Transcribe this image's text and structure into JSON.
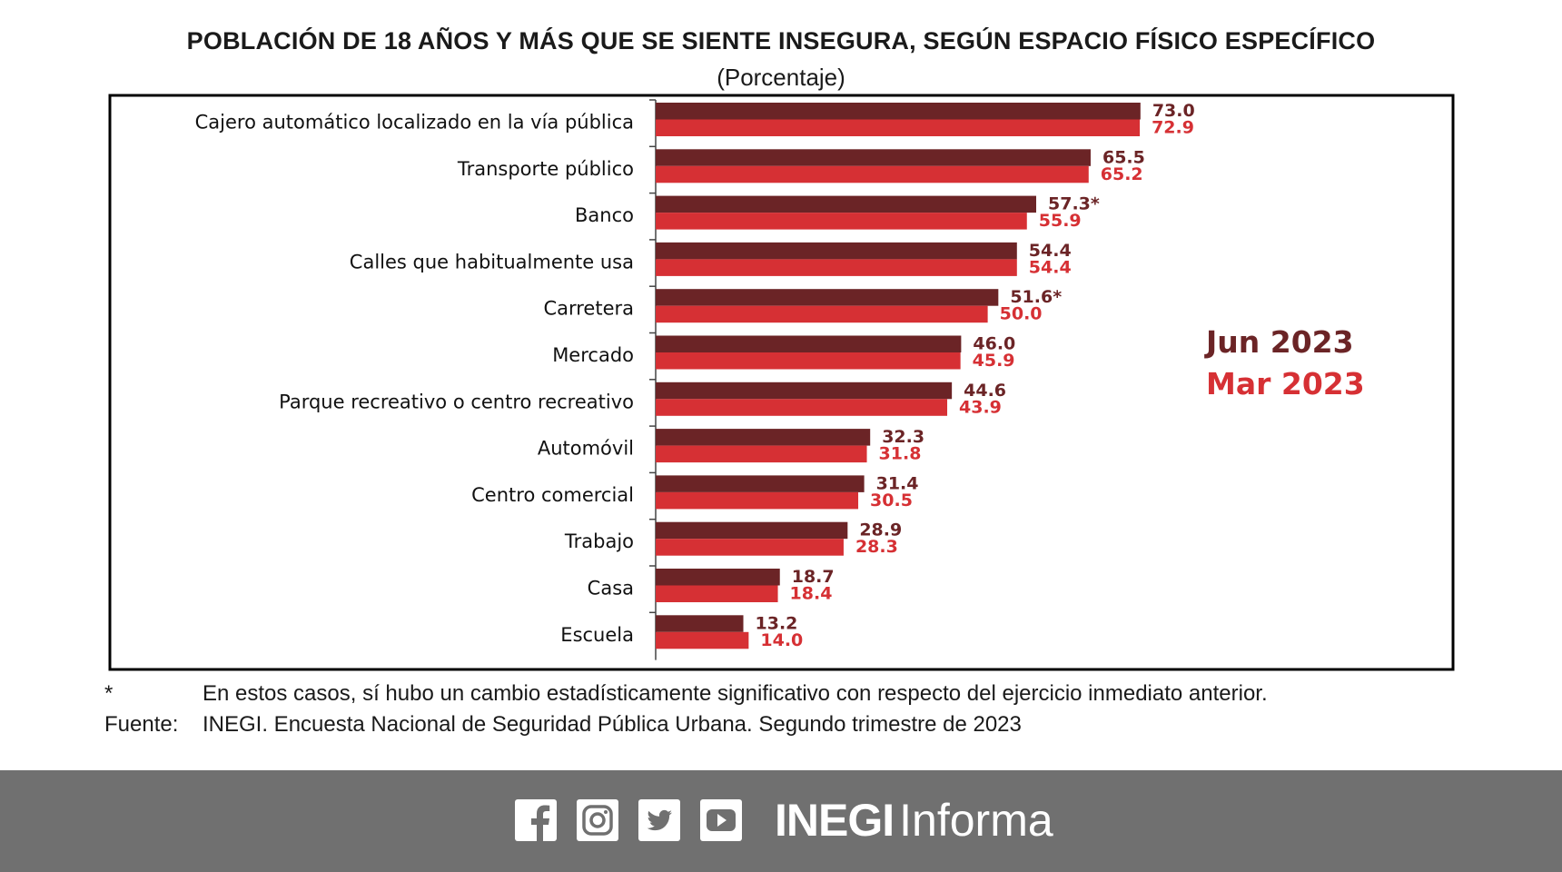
{
  "chart_data": {
    "type": "bar",
    "orientation": "horizontal",
    "title": "POBLACIÓN DE 18 AÑOS Y MÁS QUE SE SIENTE INSEGURA, SEGÚN ESPACIO FÍSICO ESPECÍFICO",
    "subtitle": "(Porcentaje)",
    "categories": [
      "Cajero automático localizado en la vía pública",
      "Transporte público",
      "Banco",
      "Calles que habitualmente usa",
      "Carretera",
      "Mercado",
      "Parque recreativo o centro recreativo",
      "Automóvil",
      "Centro comercial",
      "Trabajo",
      "Casa",
      "Escuela"
    ],
    "series": [
      {
        "name": "Jun 2023",
        "color": "#6B2426",
        "values": [
          73.0,
          65.5,
          57.3,
          54.4,
          51.6,
          46.0,
          44.6,
          32.3,
          31.4,
          28.9,
          18.7,
          13.2
        ],
        "labels": [
          "73.0",
          "65.5",
          "57.3*",
          "54.4",
          "51.6*",
          "46.0",
          "44.6",
          "32.3",
          "31.4",
          "28.9",
          "18.7",
          "13.2"
        ]
      },
      {
        "name": "Mar 2023",
        "color": "#D63034",
        "values": [
          72.9,
          65.2,
          55.9,
          54.4,
          50.0,
          45.9,
          43.9,
          31.8,
          30.5,
          28.3,
          18.4,
          14.0
        ],
        "labels": [
          "72.9",
          "65.2",
          "55.9",
          "54.4",
          "50.0",
          "45.9",
          "43.9",
          "31.8",
          "30.5",
          "28.3",
          "18.4",
          "14.0"
        ]
      }
    ],
    "xlim": [
      0,
      80
    ],
    "legend_position": "right",
    "grid": false
  },
  "notes": {
    "asterisk_key": "*",
    "asterisk_text": "En estos casos, sí hubo un cambio estadísticamente significativo con respecto del ejercicio inmediato anterior.",
    "source_key": "Fuente:",
    "source_text": "INEGI. Encuesta Nacional de Seguridad Pública Urbana. Segundo trimestre de 2023"
  },
  "footer": {
    "brand_bold": "INEGI",
    "brand_light": "Informa",
    "icons": [
      "facebook-icon",
      "instagram-icon",
      "twitter-icon",
      "youtube-icon"
    ]
  }
}
